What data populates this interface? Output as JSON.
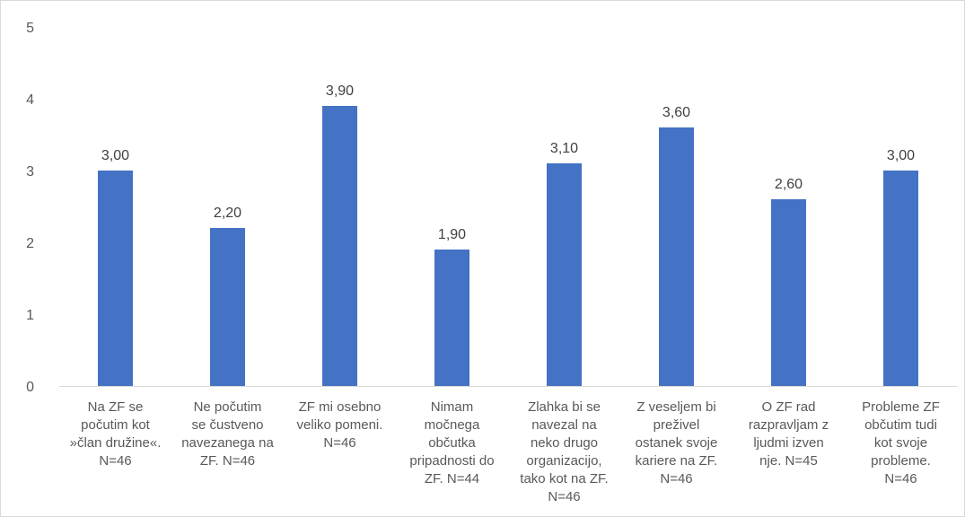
{
  "chart_data": {
    "type": "bar",
    "categories": [
      [
        "Na ZF se",
        "počutim kot",
        "»član družine«.",
        "N=46"
      ],
      [
        "Ne počutim",
        "se čustveno",
        "navezanega na",
        "ZF.  N=46"
      ],
      [
        "ZF mi osebno",
        "veliko pomeni.",
        "N=46"
      ],
      [
        "Nimam",
        "močnega",
        "občutka",
        "pripadnosti do",
        "ZF.  N=44"
      ],
      [
        "Zlahka bi se",
        "navezal na",
        "neko drugo",
        "organizacijo,",
        "tako kot na ZF.",
        "N=46"
      ],
      [
        "Z veseljem bi",
        "preživel",
        "ostanek svoje",
        "kariere na ZF.",
        "N=46"
      ],
      [
        "O ZF rad",
        "razpravljam z",
        "ljudmi izven",
        "nje.  N=45"
      ],
      [
        "Probleme ZF",
        "občutim tudi",
        "kot svoje",
        "probleme.",
        "N=46"
      ]
    ],
    "values": [
      3.0,
      2.2,
      3.9,
      1.9,
      3.1,
      3.6,
      2.6,
      3.0
    ],
    "data_labels": [
      "3,00",
      "2,20",
      "3,90",
      "1,90",
      "3,10",
      "3,60",
      "2,60",
      "3,00"
    ],
    "y_ticks": [
      "0",
      "1",
      "2",
      "3",
      "4",
      "5"
    ],
    "ylim": [
      0,
      5
    ],
    "grid": false,
    "legend": "none",
    "bar_color": "#4472c4",
    "axis_color": "#d9d9d9"
  }
}
